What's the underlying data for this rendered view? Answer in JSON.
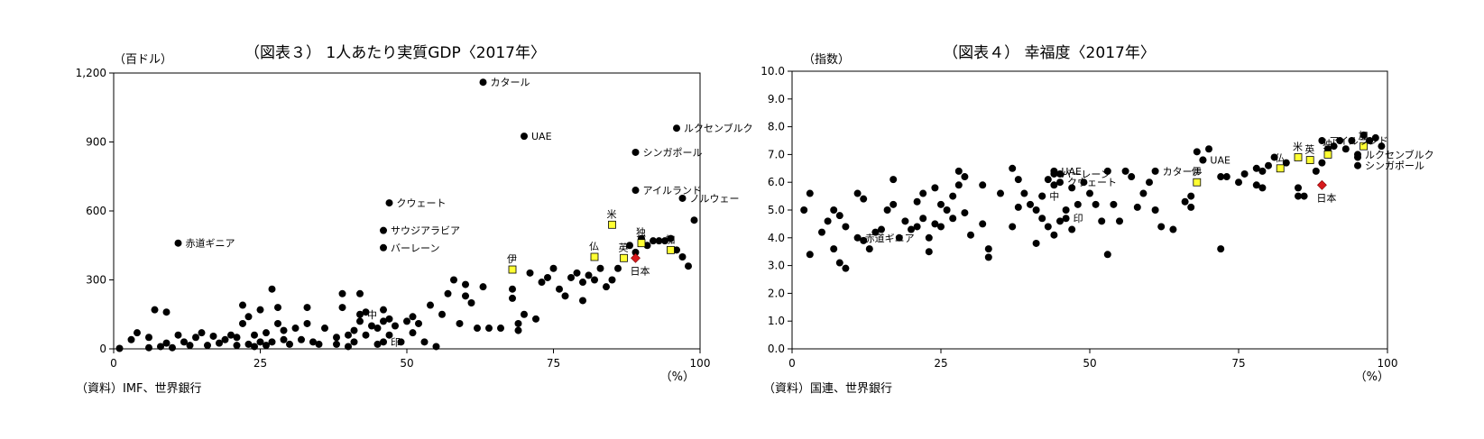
{
  "chart_data": [
    {
      "type": "scatter",
      "title": "（図表３） 1人あたり実質GDP〈2017年〉",
      "y_unit": "（百ドル）",
      "x_unit": "（%）",
      "source": "（資料）IMF、世界銀行",
      "xlim": [
        0,
        100
      ],
      "ylim": [
        0,
        1200
      ],
      "x_ticks": [
        "0",
        "25",
        "50",
        "75",
        "100"
      ],
      "y_ticks": [
        "0",
        "300",
        "600",
        "900",
        "1,200"
      ],
      "grid": false,
      "points": [
        [
          1,
          2
        ],
        [
          3,
          40
        ],
        [
          4,
          70
        ],
        [
          6,
          50
        ],
        [
          6,
          5
        ],
        [
          7,
          170
        ],
        [
          8,
          10
        ],
        [
          9,
          25
        ],
        [
          9,
          160
        ],
        [
          10,
          5
        ],
        [
          11,
          60
        ],
        [
          12,
          30
        ],
        [
          13,
          15
        ],
        [
          14,
          50
        ],
        [
          15,
          70
        ],
        [
          16,
          15
        ],
        [
          17,
          55
        ],
        [
          18,
          25
        ],
        [
          19,
          40
        ],
        [
          20,
          60
        ],
        [
          21,
          15
        ],
        [
          21,
          50
        ],
        [
          22,
          110
        ],
        [
          22,
          190
        ],
        [
          23,
          20
        ],
        [
          23,
          140
        ],
        [
          24,
          60
        ],
        [
          24,
          10
        ],
        [
          25,
          30
        ],
        [
          25,
          170
        ],
        [
          26,
          15
        ],
        [
          26,
          70
        ],
        [
          27,
          30
        ],
        [
          27,
          260
        ],
        [
          28,
          110
        ],
        [
          28,
          180
        ],
        [
          29,
          40
        ],
        [
          29,
          80
        ],
        [
          30,
          20
        ],
        [
          31,
          90
        ],
        [
          32,
          40
        ],
        [
          33,
          180
        ],
        [
          33,
          110
        ],
        [
          34,
          30
        ],
        [
          35,
          20
        ],
        [
          36,
          90
        ],
        [
          38,
          20
        ],
        [
          38,
          50
        ],
        [
          39,
          180
        ],
        [
          39,
          240
        ],
        [
          40,
          60
        ],
        [
          40,
          10
        ],
        [
          41,
          80
        ],
        [
          41,
          30
        ],
        [
          42,
          120
        ],
        [
          42,
          240
        ],
        [
          43,
          160
        ],
        [
          43,
          60
        ],
        [
          44,
          100
        ],
        [
          45,
          90
        ],
        [
          45,
          20
        ],
        [
          46,
          170
        ],
        [
          46,
          120
        ],
        [
          47,
          60
        ],
        [
          47,
          130
        ],
        [
          48,
          100
        ],
        [
          49,
          30
        ],
        [
          50,
          120
        ],
        [
          51,
          140
        ],
        [
          51,
          70
        ],
        [
          52,
          110
        ],
        [
          53,
          30
        ],
        [
          54,
          190
        ],
        [
          55,
          10
        ],
        [
          56,
          150
        ],
        [
          57,
          240
        ],
        [
          58,
          300
        ],
        [
          59,
          110
        ],
        [
          60,
          280
        ],
        [
          60,
          230
        ],
        [
          61,
          200
        ],
        [
          62,
          90
        ],
        [
          63,
          270
        ],
        [
          64,
          90
        ],
        [
          66,
          90
        ],
        [
          68,
          220
        ],
        [
          68,
          260
        ],
        [
          69,
          80
        ],
        [
          69,
          110
        ],
        [
          70,
          150
        ],
        [
          71,
          330
        ],
        [
          72,
          130
        ],
        [
          73,
          290
        ],
        [
          74,
          310
        ],
        [
          75,
          350
        ],
        [
          76,
          260
        ],
        [
          77,
          230
        ],
        [
          78,
          310
        ],
        [
          79,
          330
        ],
        [
          80,
          290
        ],
        [
          80,
          210
        ],
        [
          81,
          320
        ],
        [
          82,
          300
        ],
        [
          83,
          350
        ],
        [
          84,
          270
        ],
        [
          85,
          300
        ],
        [
          86,
          350
        ],
        [
          88,
          450
        ],
        [
          89,
          420
        ],
        [
          90,
          480
        ],
        [
          91,
          450
        ],
        [
          92,
          470
        ],
        [
          93,
          470
        ],
        [
          94,
          470
        ],
        [
          95,
          480
        ],
        [
          96,
          430
        ],
        [
          97,
          400
        ],
        [
          98,
          360
        ],
        [
          99,
          560
        ]
      ],
      "labeled_points": [
        {
          "x": 63,
          "y": 1160,
          "label": "カタール"
        },
        {
          "x": 70,
          "y": 925,
          "label": "UAE"
        },
        {
          "x": 96,
          "y": 960,
          "label": "ルクセンブルク"
        },
        {
          "x": 89,
          "y": 855,
          "label": "シンガポール"
        },
        {
          "x": 89,
          "y": 690,
          "label": "アイルランド"
        },
        {
          "x": 97,
          "y": 655,
          "label": "ノルウェー"
        },
        {
          "x": 47,
          "y": 635,
          "label": "クウェート"
        },
        {
          "x": 46,
          "y": 515,
          "label": "サウジアラビア"
        },
        {
          "x": 46,
          "y": 440,
          "label": "バーレーン"
        },
        {
          "x": 11,
          "y": 460,
          "label": "赤道ギニア"
        },
        {
          "x": 42,
          "y": 150,
          "label": "中"
        },
        {
          "x": 46,
          "y": 30,
          "label": "印"
        }
      ],
      "highlighted": [
        {
          "x": 85,
          "y": 540,
          "label": "米",
          "kind": "square"
        },
        {
          "x": 90,
          "y": 460,
          "label": "独",
          "kind": "square"
        },
        {
          "x": 87,
          "y": 395,
          "label": "英",
          "kind": "square"
        },
        {
          "x": 82,
          "y": 400,
          "label": "仏",
          "kind": "square"
        },
        {
          "x": 95,
          "y": 430,
          "label": "加",
          "kind": "square"
        },
        {
          "x": 68,
          "y": 345,
          "label": "伊",
          "kind": "square"
        },
        {
          "x": 89,
          "y": 395,
          "label": "日本",
          "kind": "diamond"
        }
      ]
    },
    {
      "type": "scatter",
      "title": "（図表４） 幸福度〈2017年〉",
      "y_unit": "（指数）",
      "x_unit": "（%）",
      "source": "（資料）国連、世界銀行",
      "xlim": [
        0,
        100
      ],
      "ylim": [
        0,
        10
      ],
      "x_ticks": [
        "0",
        "25",
        "50",
        "75",
        "100"
      ],
      "y_ticks": [
        "0.0",
        "1.0",
        "2.0",
        "3.0",
        "4.0",
        "5.0",
        "6.0",
        "7.0",
        "8.0",
        "9.0",
        "10.0"
      ],
      "grid": false,
      "points": [
        [
          2,
          5.0
        ],
        [
          3,
          3.4
        ],
        [
          3,
          5.6
        ],
        [
          5,
          4.2
        ],
        [
          6,
          4.6
        ],
        [
          7,
          5.0
        ],
        [
          7,
          3.6
        ],
        [
          8,
          3.1
        ],
        [
          8,
          4.8
        ],
        [
          9,
          4.4
        ],
        [
          9,
          2.9
        ],
        [
          11,
          5.6
        ],
        [
          12,
          3.9
        ],
        [
          12,
          5.4
        ],
        [
          13,
          3.6
        ],
        [
          14,
          4.2
        ],
        [
          15,
          4.3
        ],
        [
          16,
          5.0
        ],
        [
          17,
          6.1
        ],
        [
          17,
          5.2
        ],
        [
          18,
          4.0
        ],
        [
          19,
          4.6
        ],
        [
          20,
          4.3
        ],
        [
          21,
          4.4
        ],
        [
          21,
          5.3
        ],
        [
          22,
          4.7
        ],
        [
          22,
          5.6
        ],
        [
          23,
          4.0
        ],
        [
          23,
          3.5
        ],
        [
          24,
          5.8
        ],
        [
          24,
          4.5
        ],
        [
          25,
          4.4
        ],
        [
          25,
          5.2
        ],
        [
          26,
          5.0
        ],
        [
          27,
          5.5
        ],
        [
          27,
          4.7
        ],
        [
          28,
          6.4
        ],
        [
          28,
          5.9
        ],
        [
          29,
          6.2
        ],
        [
          29,
          4.9
        ],
        [
          30,
          4.1
        ],
        [
          32,
          4.5
        ],
        [
          32,
          5.9
        ],
        [
          33,
          3.6
        ],
        [
          33,
          3.3
        ],
        [
          35,
          5.6
        ],
        [
          37,
          6.5
        ],
        [
          37,
          4.4
        ],
        [
          38,
          5.1
        ],
        [
          38,
          6.1
        ],
        [
          39,
          5.6
        ],
        [
          40,
          5.2
        ],
        [
          41,
          5.0
        ],
        [
          41,
          3.8
        ],
        [
          42,
          4.7
        ],
        [
          42,
          5.5
        ],
        [
          43,
          6.1
        ],
        [
          43,
          4.4
        ],
        [
          44,
          4.1
        ],
        [
          44,
          5.9
        ],
        [
          45,
          6.3
        ],
        [
          45,
          4.6
        ],
        [
          46,
          5.0
        ],
        [
          47,
          4.3
        ],
        [
          47,
          5.8
        ],
        [
          48,
          5.2
        ],
        [
          49,
          6.0
        ],
        [
          50,
          5.6
        ],
        [
          51,
          5.2
        ],
        [
          52,
          4.6
        ],
        [
          53,
          6.4
        ],
        [
          53,
          3.4
        ],
        [
          54,
          5.2
        ],
        [
          55,
          4.6
        ],
        [
          56,
          6.4
        ],
        [
          57,
          6.2
        ],
        [
          58,
          5.1
        ],
        [
          59,
          5.6
        ],
        [
          60,
          6.0
        ],
        [
          61,
          5.0
        ],
        [
          62,
          4.4
        ],
        [
          64,
          4.3
        ],
        [
          66,
          5.3
        ],
        [
          67,
          5.5
        ],
        [
          67,
          5.1
        ],
        [
          68,
          7.1
        ],
        [
          69,
          6.8
        ],
        [
          70,
          7.2
        ],
        [
          72,
          3.6
        ],
        [
          72,
          6.2
        ],
        [
          73,
          6.2
        ],
        [
          75,
          6.0
        ],
        [
          76,
          6.3
        ],
        [
          78,
          5.9
        ],
        [
          78,
          6.5
        ],
        [
          79,
          5.8
        ],
        [
          79,
          6.4
        ],
        [
          80,
          6.6
        ],
        [
          81,
          6.9
        ],
        [
          83,
          6.7
        ],
        [
          85,
          5.8
        ],
        [
          85,
          5.5
        ],
        [
          86,
          5.5
        ],
        [
          88,
          6.4
        ],
        [
          89,
          6.7
        ],
        [
          90,
          7.2
        ],
        [
          91,
          7.3
        ],
        [
          92,
          7.5
        ],
        [
          93,
          7.2
        ],
        [
          94,
          7.5
        ],
        [
          95,
          6.9
        ],
        [
          96,
          7.7
        ],
        [
          97,
          7.5
        ],
        [
          98,
          7.6
        ],
        [
          99,
          7.3
        ]
      ],
      "labeled_points": [
        {
          "x": 69,
          "y": 6.8,
          "label": "UAE"
        },
        {
          "x": 44,
          "y": 6.4,
          "label": "UAE"
        },
        {
          "x": 44,
          "y": 6.3,
          "label": "バーレーン"
        },
        {
          "x": 45,
          "y": 6.0,
          "label": "クウェート"
        },
        {
          "x": 61,
          "y": 6.4,
          "label": "カタール"
        },
        {
          "x": 89,
          "y": 7.5,
          "label": "アイルランド"
        },
        {
          "x": 95,
          "y": 7.0,
          "label": "ルクセンブルク"
        },
        {
          "x": 95,
          "y": 6.6,
          "label": "シンガポール"
        },
        {
          "x": 11,
          "y": 4.0,
          "label": "赤道ギニア"
        },
        {
          "x": 42,
          "y": 5.5,
          "label": "中"
        },
        {
          "x": 46,
          "y": 4.7,
          "label": "印"
        }
      ],
      "highlighted": [
        {
          "x": 85,
          "y": 6.9,
          "label": "米",
          "kind": "square"
        },
        {
          "x": 90,
          "y": 7.0,
          "label": "独",
          "kind": "square"
        },
        {
          "x": 87,
          "y": 6.8,
          "label": "英",
          "kind": "square"
        },
        {
          "x": 82,
          "y": 6.5,
          "label": "仏",
          "kind": "square"
        },
        {
          "x": 96,
          "y": 7.3,
          "label": "加",
          "kind": "square"
        },
        {
          "x": 68,
          "y": 6.0,
          "label": "伊",
          "kind": "square"
        },
        {
          "x": 89,
          "y": 5.9,
          "label": "日本",
          "kind": "diamond"
        }
      ]
    }
  ]
}
